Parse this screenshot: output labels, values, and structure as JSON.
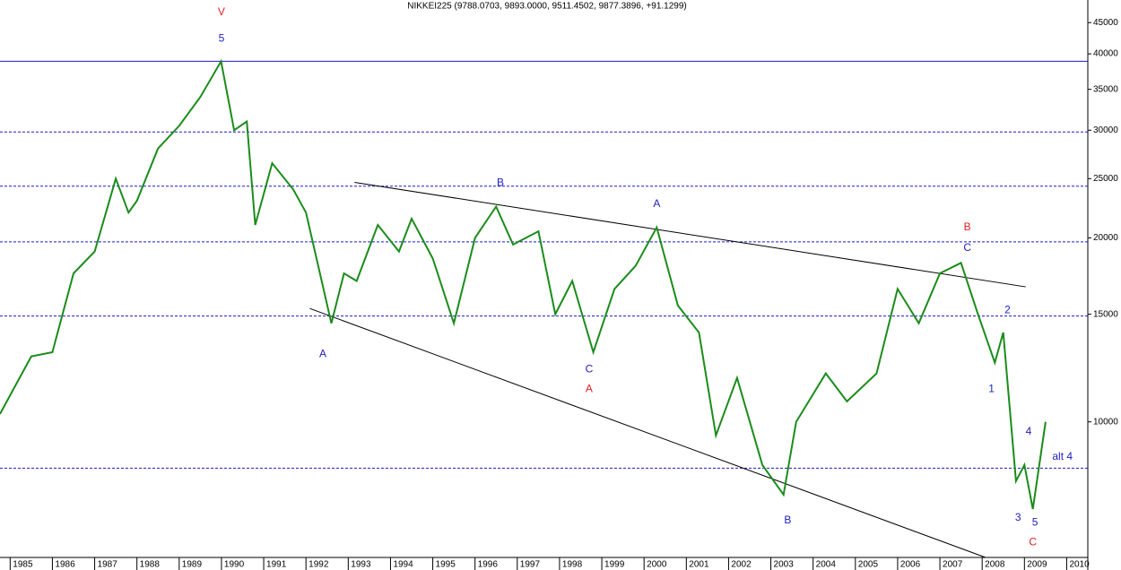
{
  "chart_data": {
    "type": "line",
    "title": "NIKKEI225 (9788.0703, 9893.0000, 9511.4502, 9877.3896, +91.1299)",
    "log_scale": true,
    "xlim": [
      1984.76,
      2010.5
    ],
    "ylim": [
      6000,
      49000
    ],
    "xticks": [
      1985,
      1986,
      1987,
      1988,
      1989,
      1990,
      1991,
      1992,
      1993,
      1994,
      1995,
      1996,
      1997,
      1998,
      1999,
      2000,
      2001,
      2002,
      2003,
      2004,
      2005,
      2006,
      2007,
      2008,
      2009,
      2010
    ],
    "yticks": [
      10000,
      15000,
      20000,
      25000,
      30000,
      35000,
      40000,
      45000
    ],
    "series": [
      {
        "name": "NIKKEI225",
        "color": "#1a8c1a",
        "x": [
          1984.76,
          1985.5,
          1986.0,
          1986.5,
          1987.0,
          1987.5,
          1987.8,
          1988.0,
          1988.5,
          1989.0,
          1989.5,
          1989.99,
          1990.3,
          1990.6,
          1990.8,
          1991.2,
          1991.7,
          1992.0,
          1992.6,
          1992.9,
          1993.2,
          1993.7,
          1994.2,
          1994.5,
          1995.0,
          1995.5,
          1996.0,
          1996.5,
          1996.9,
          1997.5,
          1997.9,
          1998.3,
          1998.8,
          1999.3,
          1999.8,
          2000.3,
          2000.8,
          2001.3,
          2001.7,
          2002.2,
          2002.8,
          2003.3,
          2003.6,
          2004.3,
          2004.8,
          2005.5,
          2006.0,
          2006.5,
          2007.0,
          2007.5,
          2007.9,
          2008.3,
          2008.5,
          2008.8,
          2009.0,
          2009.2,
          2009.5
        ],
        "values": [
          10300,
          12800,
          13000,
          17500,
          19000,
          25000,
          22000,
          23000,
          28000,
          30500,
          34000,
          38900,
          30000,
          31000,
          21000,
          26500,
          24000,
          22000,
          14500,
          17500,
          17000,
          21000,
          19000,
          21500,
          18500,
          14500,
          20000,
          22500,
          19500,
          20500,
          15000,
          17000,
          13000,
          16500,
          18000,
          20800,
          15500,
          14000,
          9500,
          11800,
          8500,
          7600,
          10000,
          12000,
          10800,
          12000,
          16500,
          14500,
          17500,
          18200,
          15000,
          12500,
          14000,
          8000,
          8500,
          7200,
          10000
        ]
      }
    ],
    "reference_lines": [
      {
        "value": 38900,
        "style": "solid"
      },
      {
        "value": 29800,
        "style": "dashed"
      },
      {
        "value": 24300,
        "style": "dashed"
      },
      {
        "value": 19700,
        "style": "dashed"
      },
      {
        "value": 14900,
        "style": "dashed"
      },
      {
        "value": 8400,
        "style": "dashed"
      }
    ],
    "trendlines": [
      {
        "x": [
          1993.15,
          2009.03
        ],
        "y": [
          24650,
          16630
        ]
      },
      {
        "x": [
          1992.09,
          2008.08
        ],
        "y": [
          15330,
          6000
        ]
      }
    ],
    "annotations": [
      {
        "text": "V",
        "color": "#e02020",
        "x": 1990.0,
        "y": 46800
      },
      {
        "text": "5",
        "color": "#2020c0",
        "x": 1990.0,
        "y": 42300
      },
      {
        "text": "A",
        "color": "#2020c0",
        "x": 1992.4,
        "y": 12900
      },
      {
        "text": "B",
        "color": "#2020c0",
        "x": 1996.6,
        "y": 24600
      },
      {
        "text": "A",
        "color": "#2020c0",
        "x": 2000.3,
        "y": 22700
      },
      {
        "text": "C",
        "color": "#2020c0",
        "x": 1998.7,
        "y": 12170
      },
      {
        "text": "A",
        "color": "#e02020",
        "x": 1998.7,
        "y": 11300
      },
      {
        "text": "B",
        "color": "#2020c0",
        "x": 2003.4,
        "y": 6900
      },
      {
        "text": "B",
        "color": "#e02020",
        "x": 2007.65,
        "y": 20800
      },
      {
        "text": "C",
        "color": "#2020c0",
        "x": 2007.65,
        "y": 19250
      },
      {
        "text": "2",
        "color": "#2020c0",
        "x": 2008.6,
        "y": 15230
      },
      {
        "text": "1",
        "color": "#2020c0",
        "x": 2008.22,
        "y": 11300
      },
      {
        "text": "4",
        "color": "#2020c0",
        "x": 2009.1,
        "y": 9630
      },
      {
        "text": "alt 4",
        "color": "#2020c0",
        "x": 2009.9,
        "y": 8760
      },
      {
        "text": "3",
        "color": "#2020c0",
        "x": 2008.85,
        "y": 6960
      },
      {
        "text": "5",
        "color": "#2020c0",
        "x": 2009.25,
        "y": 6840
      },
      {
        "text": "C",
        "color": "#e02020",
        "x": 2009.2,
        "y": 6350
      }
    ]
  }
}
